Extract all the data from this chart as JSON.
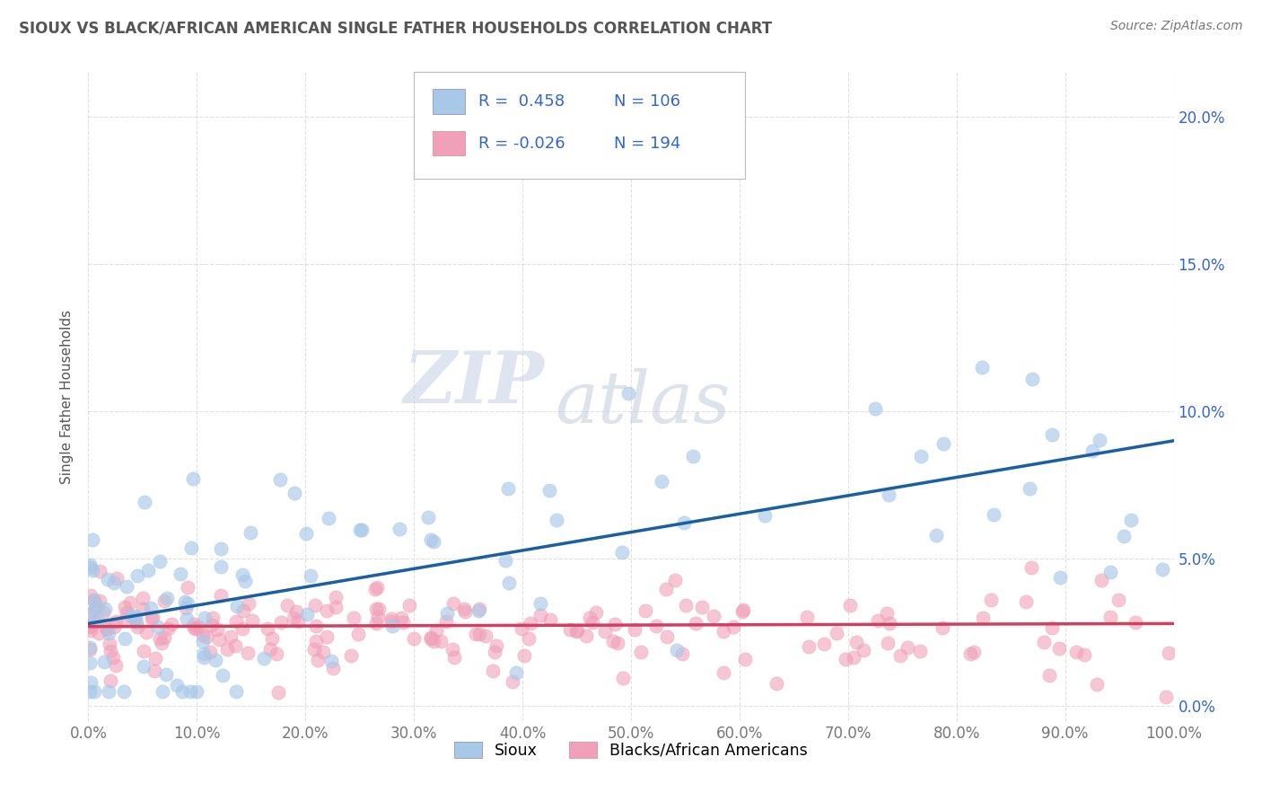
{
  "title": "SIOUX VS BLACK/AFRICAN AMERICAN SINGLE FATHER HOUSEHOLDS CORRELATION CHART",
  "source": "Source: ZipAtlas.com",
  "ylabel": "Single Father Households",
  "xlim": [
    0.0,
    1.0
  ],
  "ylim": [
    -0.005,
    0.215
  ],
  "sioux_color": "#a8c8e8",
  "black_color": "#f0a0b8",
  "sioux_line_color": "#1a5fa0",
  "black_line_color": "#d04060",
  "sioux_R": 0.458,
  "sioux_N": 106,
  "black_R": -0.026,
  "black_N": 194,
  "legend_label_sioux": "Sioux",
  "legend_label_black": "Blacks/African Americans",
  "watermark_zip": "ZIP",
  "watermark_atlas": "atlas",
  "background_color": "#ffffff",
  "grid_color": "#cccccc",
  "title_color": "#555555",
  "blue_text": "#3366cc",
  "sioux_line_y0": 0.028,
  "sioux_line_y1": 0.09,
  "black_line_y0": 0.027,
  "black_line_y1": 0.028
}
